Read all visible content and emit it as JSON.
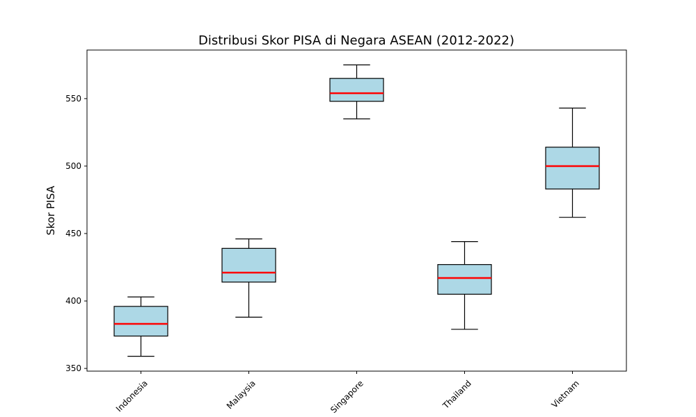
{
  "chart_data": {
    "type": "boxplot",
    "title": "Distribusi Skor PISA di Negara ASEAN (2012-2022)",
    "xlabel": "",
    "ylabel": "Skor PISA",
    "ylim": [
      348,
      586
    ],
    "yticks": [
      350,
      400,
      450,
      500,
      550
    ],
    "categories": [
      "Indonesia",
      "Malaysia",
      "Singapore",
      "Thailand",
      "Vietnam"
    ],
    "boxes": [
      {
        "category": "Indonesia",
        "whisker_low": 359,
        "q1": 374,
        "median": 383,
        "q3": 396,
        "whisker_high": 403
      },
      {
        "category": "Malaysia",
        "whisker_low": 388,
        "q1": 414,
        "median": 421,
        "q3": 439,
        "whisker_high": 446
      },
      {
        "category": "Singapore",
        "whisker_low": 535,
        "q1": 548,
        "median": 554,
        "q3": 565,
        "whisker_high": 575
      },
      {
        "category": "Thailand",
        "whisker_low": 379,
        "q1": 405,
        "median": 417,
        "q3": 427,
        "whisker_high": 444
      },
      {
        "category": "Vietnam",
        "whisker_low": 462,
        "q1": 483,
        "median": 500,
        "q3": 514,
        "whisker_high": 543
      }
    ],
    "colors": {
      "box_fill": "#add8e6",
      "box_edge": "#000000",
      "median": "#ff0000"
    },
    "grid": false,
    "x_tick_rotation": 45
  }
}
